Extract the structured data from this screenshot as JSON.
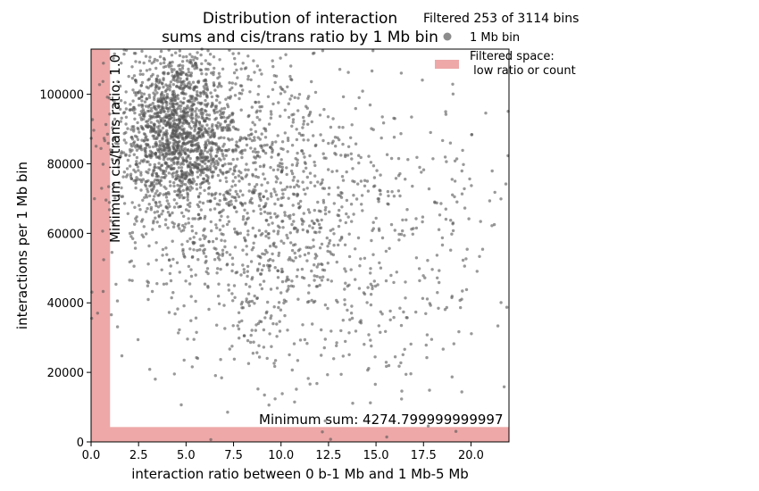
{
  "chart_data": {
    "type": "scatter",
    "title_lines": [
      "Distribution of interaction",
      "sums and cis/trans ratio by 1 Mb bin"
    ],
    "xlabel": "interaction ratio between 0 b-1 Mb and 1 Mb-5 Mb",
    "ylabel": "interactions per 1 Mb bin",
    "xlim": [
      0,
      22
    ],
    "ylim": [
      0,
      113000
    ],
    "x_ticks": [
      0.0,
      2.5,
      5.0,
      7.5,
      10.0,
      12.5,
      15.0,
      17.5,
      20.0
    ],
    "x_tick_labels": [
      "0.0",
      "2.5",
      "5.0",
      "7.5",
      "10.0",
      "12.5",
      "15.0",
      "17.5",
      "20.0"
    ],
    "y_ticks": [
      0,
      20000,
      40000,
      60000,
      80000,
      100000
    ],
    "y_tick_labels": [
      "0",
      "20000",
      "40000",
      "60000",
      "80000",
      "100000"
    ],
    "grid": false,
    "legend": {
      "placement": "top-right",
      "title": "Filtered 253 of 3114 bins",
      "entries": [
        {
          "label": "1 Mb bin",
          "marker": "point",
          "color": "#8c8c8c"
        },
        {
          "label_lines": [
            "Filtered space:",
            " low ratio or count"
          ],
          "marker": "patch",
          "color": "#eea8a8"
        }
      ]
    },
    "filters": {
      "min_ratio": 1.0,
      "min_sum": 4274.799999999997,
      "color": "#eea8a8"
    },
    "annotations": {
      "min_ratio_label": "Minimum cis/trans ratio: 1.0",
      "min_sum_label": "Minimum sum: 4274.799999999997"
    },
    "series": [
      {
        "point_color": "#555555",
        "point_count": 3114,
        "clusters": [
          {
            "cx": 4.5,
            "cy": 90000,
            "sx": 1.5,
            "sy": 12000,
            "n": 1500
          },
          {
            "cx": 8.0,
            "cy": 72000,
            "sx": 3.5,
            "sy": 22000,
            "n": 1100
          },
          {
            "cx": 13.5,
            "cy": 55000,
            "sx": 4.5,
            "sy": 24000,
            "n": 514
          }
        ]
      }
    ]
  }
}
